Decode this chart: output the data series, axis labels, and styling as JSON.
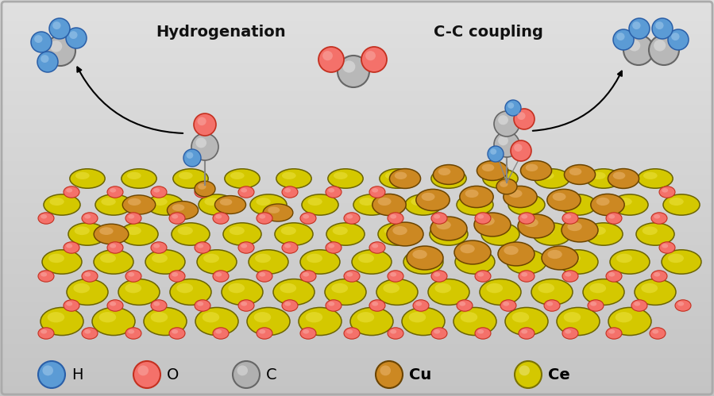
{
  "label_hydrogenation": "Hydrogenation",
  "label_cc_coupling": "C-C coupling",
  "legend_items": [
    {
      "label": "H",
      "face": "#5b9bd5",
      "edge": "#2a5fa8",
      "hi": "#aacfee"
    },
    {
      "label": "O",
      "face": "#f4716a",
      "edge": "#c43020",
      "hi": "#f9b0aa"
    },
    {
      "label": "C",
      "face": "#b0b0b0",
      "edge": "#666666",
      "hi": "#e5e5e5"
    },
    {
      "label": "Cu",
      "face": "#cc8822",
      "edge": "#6b4400",
      "hi": "#eebb77"
    },
    {
      "label": "Ce",
      "face": "#d4c800",
      "edge": "#7a7200",
      "hi": "#eee888"
    }
  ],
  "atom_colors": {
    "H": {
      "face": "#5b9bd5",
      "edge": "#2a5fa8",
      "hi": "#aacfee"
    },
    "O": {
      "face": "#f4716a",
      "edge": "#c43020",
      "hi": "#f9b0aa"
    },
    "C": {
      "face": "#b8b8b8",
      "edge": "#666666",
      "hi": "#e8e8e8"
    },
    "Cu": {
      "face": "#cc8822",
      "edge": "#6b4400",
      "hi": "#eebb77"
    },
    "Ce": {
      "face": "#d4c800",
      "edge": "#6b6400",
      "hi": "#eee444"
    }
  },
  "fig_width": 8.99,
  "fig_height": 4.99,
  "bg_color_top": "#d0d0d0",
  "bg_color_bottom": "#e8e8e8"
}
